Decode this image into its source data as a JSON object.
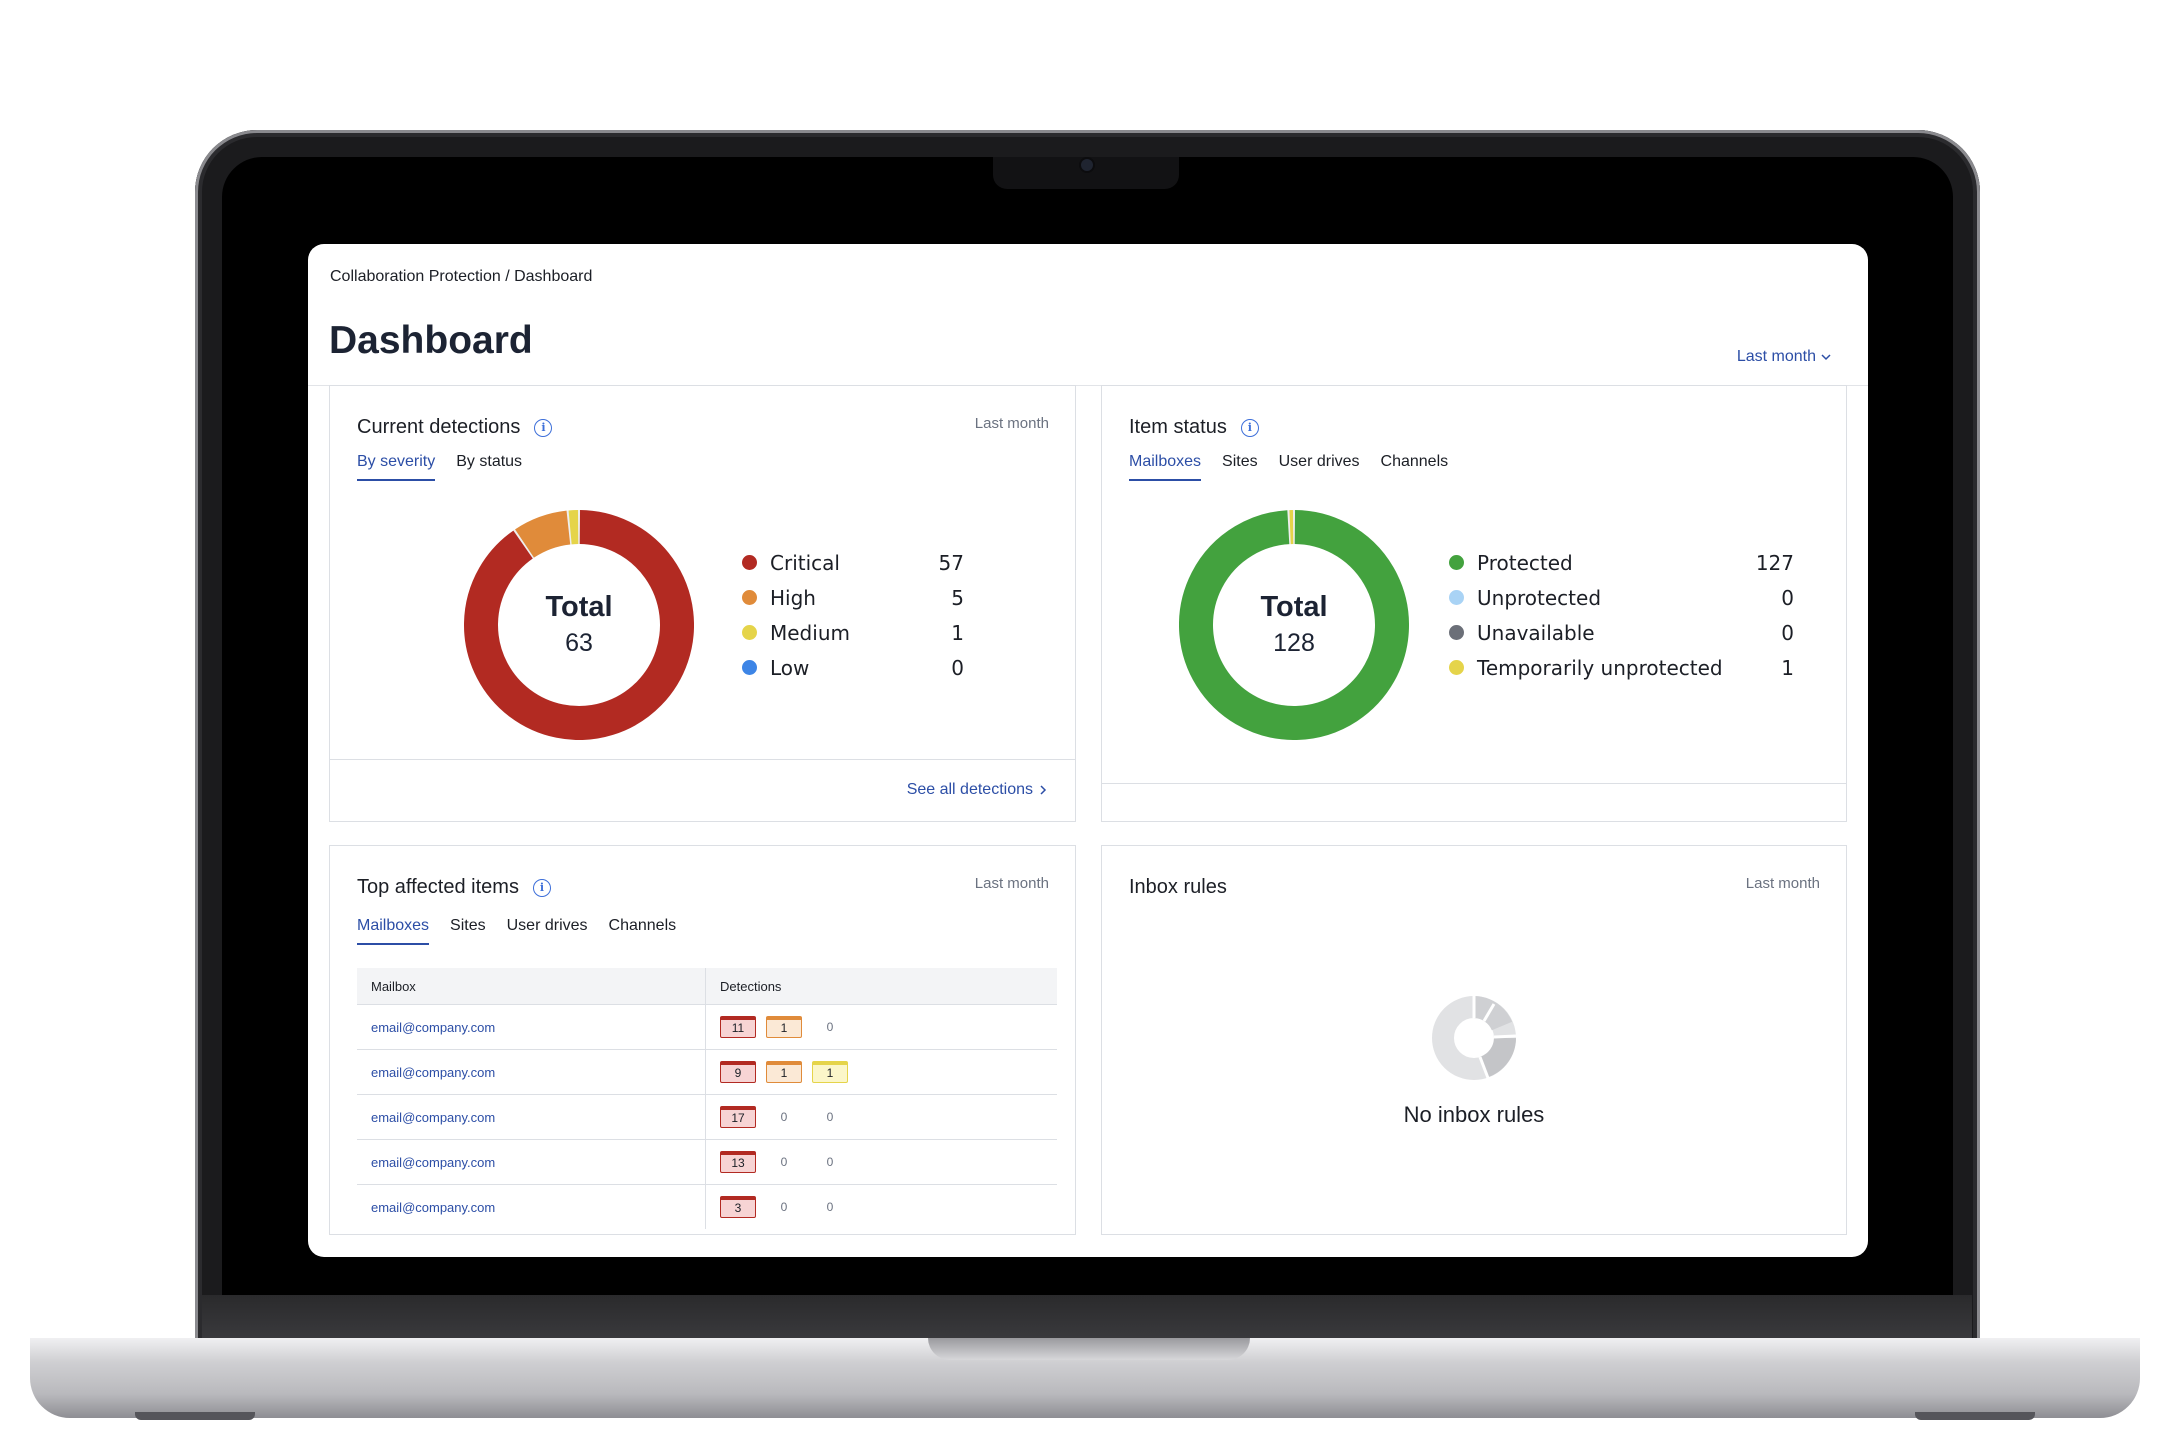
{
  "breadcrumb": "Collaboration Protection / Dashboard",
  "page_title": "Dashboard",
  "period_select": "Last month",
  "current_detections": {
    "title": "Current detections",
    "period": "Last month",
    "tabs": [
      "By severity",
      "By status"
    ],
    "active_tab": "By severity",
    "total_label": "Total",
    "total_value": "63",
    "legend": [
      {
        "label": "Critical",
        "value": "57",
        "color": "#b22a22"
      },
      {
        "label": "High",
        "value": "5",
        "color": "#e08b3a"
      },
      {
        "label": "Medium",
        "value": "1",
        "color": "#e5d44a"
      },
      {
        "label": "Low",
        "value": "0",
        "color": "#3d85e6"
      }
    ],
    "see_all": "See all detections"
  },
  "item_status": {
    "title": "Item status",
    "tabs": [
      "Mailboxes",
      "Sites",
      "User drives",
      "Channels"
    ],
    "active_tab": "Mailboxes",
    "total_label": "Total",
    "total_value": "128",
    "legend": [
      {
        "label": "Protected",
        "value": "127",
        "color": "#43a23e"
      },
      {
        "label": "Unprotected",
        "value": "0",
        "color": "#a9d3f5"
      },
      {
        "label": "Unavailable",
        "value": "0",
        "color": "#6b6f78"
      },
      {
        "label": "Temporarily unprotected",
        "value": "1",
        "color": "#e5d44a"
      }
    ]
  },
  "top_affected": {
    "title": "Top affected items",
    "period": "Last month",
    "tabs": [
      "Mailboxes",
      "Sites",
      "User drives",
      "Channels"
    ],
    "active_tab": "Mailboxes",
    "columns": [
      "Mailbox",
      "Detections"
    ],
    "rows": [
      {
        "mailbox": "email@company.com",
        "critical": "11",
        "high": "1",
        "medium": "0"
      },
      {
        "mailbox": "email@company.com",
        "critical": "9",
        "high": "1",
        "medium": "1"
      },
      {
        "mailbox": "email@company.com",
        "critical": "17",
        "high": "0",
        "medium": "0"
      },
      {
        "mailbox": "email@company.com",
        "critical": "13",
        "high": "0",
        "medium": "0"
      },
      {
        "mailbox": "email@company.com",
        "critical": "3",
        "high": "0",
        "medium": "0"
      }
    ]
  },
  "inbox_rules": {
    "title": "Inbox rules",
    "period": "Last month",
    "empty_label": "No inbox rules"
  },
  "icons": {
    "info": "info-icon",
    "chevron_down": "chevron-down-icon",
    "chevron_right": "chevron-right-icon",
    "empty_chart": "empty-donut-icon"
  }
}
